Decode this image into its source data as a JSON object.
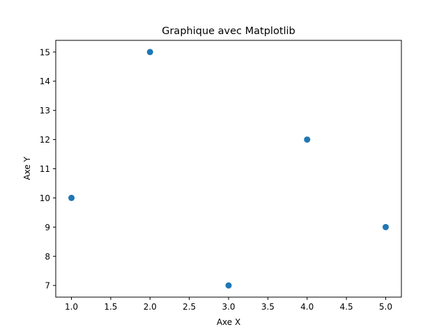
{
  "chart_data": {
    "type": "scatter",
    "title": "Graphique avec Matplotlib",
    "xlabel": "Axe X",
    "ylabel": "Axe Y",
    "x": [
      1,
      2,
      3,
      4,
      5
    ],
    "y": [
      10,
      15,
      7,
      12,
      9
    ],
    "xlim": [
      0.8,
      5.2
    ],
    "ylim": [
      6.6,
      15.4
    ],
    "xticks": [
      1.0,
      1.5,
      2.0,
      2.5,
      3.0,
      3.5,
      4.0,
      4.5,
      5.0
    ],
    "xtick_labels": [
      "1.0",
      "1.5",
      "2.0",
      "2.5",
      "3.0",
      "3.5",
      "4.0",
      "4.5",
      "5.0"
    ],
    "yticks": [
      7,
      8,
      9,
      10,
      11,
      12,
      13,
      14,
      15
    ],
    "ytick_labels": [
      "7",
      "8",
      "9",
      "10",
      "11",
      "12",
      "13",
      "14",
      "15"
    ],
    "grid": false,
    "legend": "none",
    "marker_color": "#1f77b4"
  }
}
